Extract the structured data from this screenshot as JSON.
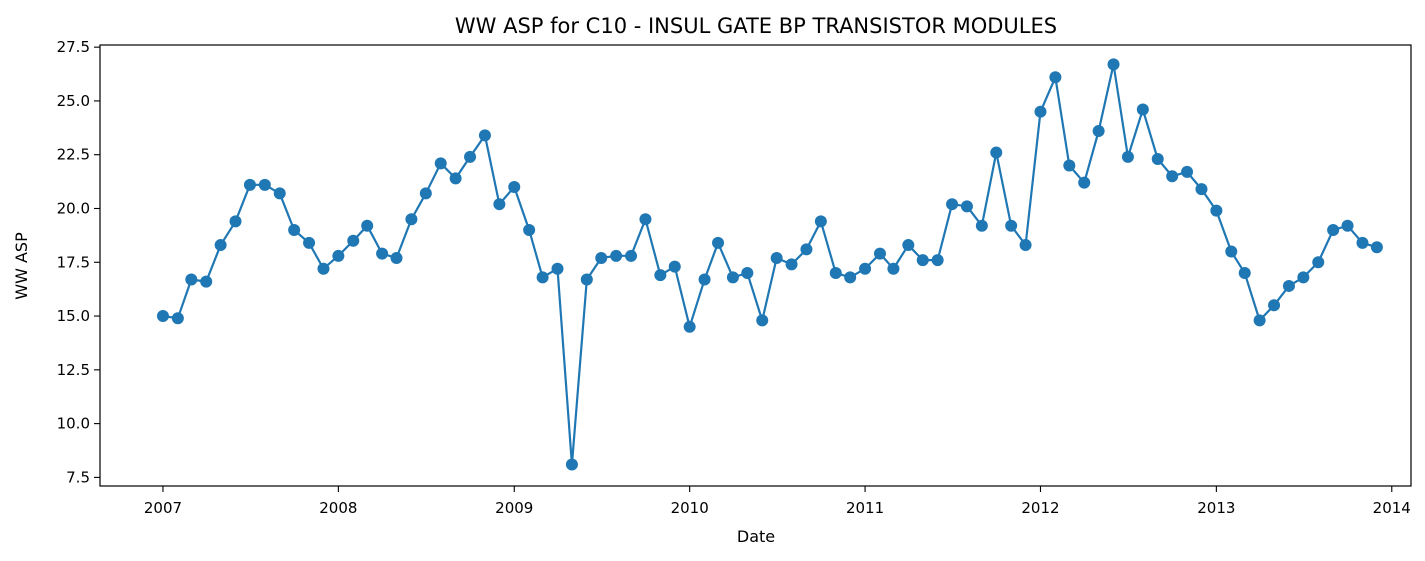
{
  "chart_data": {
    "type": "line",
    "title": "WW ASP for C10 - INSUL GATE BP TRANSISTOR MODULES",
    "xlabel": "Date",
    "ylabel": "WW ASP",
    "xlim": [
      "2006-08-23",
      "2014-02-10"
    ],
    "ylim": [
      7.1,
      27.6
    ],
    "x_ticks": [
      "2007",
      "2008",
      "2009",
      "2010",
      "2011",
      "2012",
      "2013",
      "2014"
    ],
    "y_ticks": [
      "7.5",
      "10.0",
      "12.5",
      "15.0",
      "17.5",
      "20.0",
      "22.5",
      "25.0",
      "27.5"
    ],
    "grid": false,
    "color": "#1f77b4",
    "marker": "circle",
    "series": [
      {
        "x": [
          "2007-01",
          "2007-02",
          "2007-03",
          "2007-04",
          "2007-05",
          "2007-06",
          "2007-07",
          "2007-08",
          "2007-09",
          "2007-10",
          "2007-11",
          "2007-12",
          "2008-01",
          "2008-02",
          "2008-03",
          "2008-04",
          "2008-05",
          "2008-06",
          "2008-07",
          "2008-08",
          "2008-09",
          "2008-10",
          "2008-11",
          "2008-12",
          "2009-01",
          "2009-02",
          "2009-03",
          "2009-04",
          "2009-05",
          "2009-06",
          "2009-07",
          "2009-08",
          "2009-09",
          "2009-10",
          "2009-11",
          "2009-12",
          "2010-01",
          "2010-02",
          "2010-03",
          "2010-04",
          "2010-05",
          "2010-06",
          "2010-07",
          "2010-08",
          "2010-09",
          "2010-10",
          "2010-11",
          "2010-12",
          "2011-01",
          "2011-02",
          "2011-03",
          "2011-04",
          "2011-05",
          "2011-06",
          "2011-07",
          "2011-08",
          "2011-09",
          "2011-10",
          "2011-11",
          "2011-12",
          "2012-01",
          "2012-02",
          "2012-03",
          "2012-04",
          "2012-05",
          "2012-06",
          "2012-07",
          "2012-08",
          "2012-09",
          "2012-10",
          "2012-11",
          "2012-12",
          "2013-01",
          "2013-02",
          "2013-03",
          "2013-04",
          "2013-05",
          "2013-06",
          "2013-07",
          "2013-08",
          "2013-09",
          "2013-10",
          "2013-11",
          "2013-12"
        ],
        "y": [
          15.0,
          14.9,
          16.7,
          16.6,
          18.3,
          19.4,
          21.1,
          21.1,
          20.7,
          19.0,
          18.4,
          17.2,
          17.8,
          18.5,
          19.2,
          17.9,
          17.7,
          19.5,
          20.7,
          22.1,
          21.4,
          22.4,
          23.4,
          20.2,
          21.0,
          19.0,
          16.8,
          17.2,
          8.1,
          16.7,
          17.7,
          17.8,
          17.8,
          19.5,
          16.9,
          17.3,
          14.5,
          16.7,
          18.4,
          16.8,
          17.0,
          14.8,
          17.7,
          17.4,
          18.1,
          19.4,
          17.0,
          16.8,
          17.2,
          17.9,
          17.2,
          18.3,
          17.6,
          17.6,
          20.2,
          20.1,
          19.2,
          22.6,
          19.2,
          18.3,
          24.5,
          26.1,
          22.0,
          21.2,
          23.6,
          26.7,
          22.4,
          24.6,
          22.3,
          21.5,
          21.7,
          20.9,
          19.9,
          18.0,
          17.0,
          14.8,
          15.5,
          16.4,
          16.8,
          17.5,
          19.0,
          19.2,
          18.4,
          18.2
        ]
      }
    ]
  }
}
